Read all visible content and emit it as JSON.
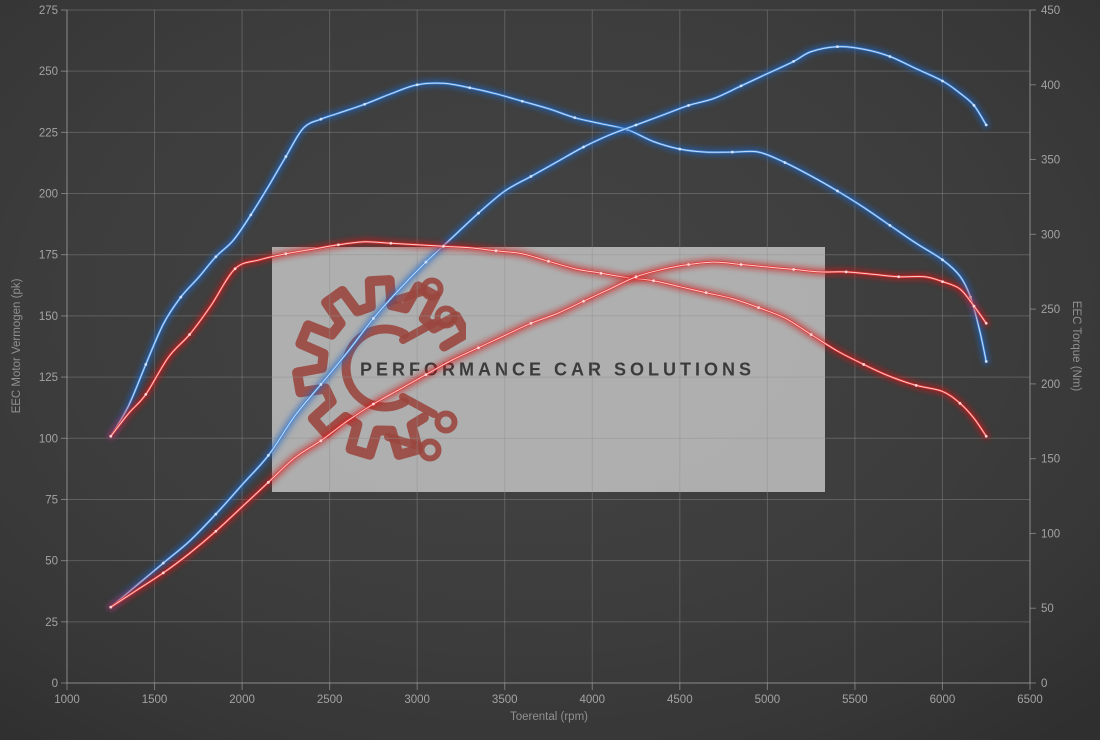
{
  "watermark": {
    "text": "PERFORMANCE CAR SOLUTIONS",
    "logo_icon": "gear-circuit-icon",
    "box_color": "#cbcbcb",
    "text_color": "#3b3b3b",
    "logo_color": "#9a453e"
  },
  "colors": {
    "background": "#3d3d3d",
    "grid": "#8f8f8f",
    "axis_line": "#b0b0b0",
    "tick_label": "#a3a3a3",
    "axis_title": "#919191",
    "blue": "#3f87db",
    "blue_glow": "#1e66c8",
    "blue_core": "#d4e6fb",
    "red": "#e03030",
    "red_glow": "#d01414",
    "red_core": "#ffdcdc"
  },
  "chart_data": {
    "type": "line",
    "x_axis": {
      "label": "Toerental (rpm)",
      "min": 1000,
      "max": 6500,
      "ticks": [
        1000,
        1500,
        2000,
        2500,
        3000,
        3500,
        4000,
        4500,
        5000,
        5500,
        6000,
        6500
      ]
    },
    "y_left": {
      "label": "EEC Motor Vermogen (pk)",
      "min": 0,
      "max": 275,
      "ticks": [
        0,
        25,
        50,
        75,
        100,
        125,
        150,
        175,
        200,
        225,
        250,
        275
      ]
    },
    "y_right": {
      "label": "EEC Torque (Nm)",
      "min": 0,
      "max": 450,
      "ticks": [
        0,
        50,
        100,
        150,
        200,
        250,
        300,
        350,
        400,
        450
      ]
    },
    "grid": "left-axis horizontal every 25, vertical every 500 rpm",
    "legend": "none",
    "series": [
      {
        "id": "torque-blue",
        "axis": "right",
        "unit": "Nm",
        "color": "#3f87db",
        "glow": "#1e66c8",
        "core": "#d4e6fb",
        "points": [
          [
            1250,
            165
          ],
          [
            1350,
            185
          ],
          [
            1450,
            213
          ],
          [
            1550,
            240
          ],
          [
            1650,
            258
          ],
          [
            1750,
            271
          ],
          [
            1850,
            285
          ],
          [
            1950,
            296
          ],
          [
            2050,
            313
          ],
          [
            2150,
            332
          ],
          [
            2250,
            352
          ],
          [
            2350,
            371
          ],
          [
            2450,
            377
          ],
          [
            2550,
            381
          ],
          [
            2700,
            387
          ],
          [
            2850,
            394
          ],
          [
            3000,
            400
          ],
          [
            3150,
            401
          ],
          [
            3300,
            398
          ],
          [
            3450,
            394
          ],
          [
            3600,
            389
          ],
          [
            3750,
            384
          ],
          [
            3900,
            378
          ],
          [
            4050,
            374
          ],
          [
            4200,
            370
          ],
          [
            4350,
            362
          ],
          [
            4500,
            357
          ],
          [
            4650,
            355
          ],
          [
            4800,
            355
          ],
          [
            4950,
            355
          ],
          [
            5100,
            348
          ],
          [
            5250,
            339
          ],
          [
            5400,
            329
          ],
          [
            5550,
            318
          ],
          [
            5700,
            306
          ],
          [
            5850,
            294
          ],
          [
            6000,
            283
          ],
          [
            6100,
            272
          ],
          [
            6160,
            258
          ],
          [
            6210,
            237
          ],
          [
            6250,
            215
          ]
        ]
      },
      {
        "id": "power-blue",
        "axis": "left",
        "unit": "pk",
        "color": "#3f87db",
        "glow": "#1e66c8",
        "core": "#d4e6fb",
        "points": [
          [
            1250,
            31
          ],
          [
            1400,
            40
          ],
          [
            1550,
            49
          ],
          [
            1700,
            58
          ],
          [
            1850,
            69
          ],
          [
            2000,
            81
          ],
          [
            2150,
            93
          ],
          [
            2300,
            109
          ],
          [
            2450,
            122
          ],
          [
            2600,
            135
          ],
          [
            2750,
            149
          ],
          [
            2900,
            161
          ],
          [
            3050,
            172
          ],
          [
            3200,
            182
          ],
          [
            3350,
            192
          ],
          [
            3500,
            201
          ],
          [
            3650,
            207
          ],
          [
            3800,
            213
          ],
          [
            3950,
            219
          ],
          [
            4100,
            224
          ],
          [
            4250,
            228
          ],
          [
            4400,
            232
          ],
          [
            4550,
            236
          ],
          [
            4700,
            239
          ],
          [
            4850,
            244
          ],
          [
            5000,
            249
          ],
          [
            5150,
            254
          ],
          [
            5250,
            258
          ],
          [
            5400,
            260
          ],
          [
            5550,
            259
          ],
          [
            5700,
            256
          ],
          [
            5850,
            251
          ],
          [
            6000,
            246
          ],
          [
            6100,
            241
          ],
          [
            6180,
            236
          ],
          [
            6250,
            228
          ]
        ]
      },
      {
        "id": "torque-red",
        "axis": "right",
        "unit": "Nm",
        "color": "#e03030",
        "glow": "#d01414",
        "core": "#ffdcdc",
        "points": [
          [
            1250,
            165
          ],
          [
            1350,
            180
          ],
          [
            1450,
            193
          ],
          [
            1580,
            218
          ],
          [
            1700,
            233
          ],
          [
            1820,
            252
          ],
          [
            1960,
            277
          ],
          [
            2100,
            283
          ],
          [
            2250,
            287
          ],
          [
            2400,
            290
          ],
          [
            2550,
            293
          ],
          [
            2700,
            295
          ],
          [
            2850,
            294
          ],
          [
            3000,
            293
          ],
          [
            3150,
            292
          ],
          [
            3300,
            291
          ],
          [
            3450,
            289
          ],
          [
            3600,
            287
          ],
          [
            3750,
            282
          ],
          [
            3900,
            277
          ],
          [
            4050,
            274
          ],
          [
            4200,
            271
          ],
          [
            4350,
            269
          ],
          [
            4500,
            265
          ],
          [
            4650,
            261
          ],
          [
            4800,
            257
          ],
          [
            4950,
            251
          ],
          [
            5100,
            244
          ],
          [
            5250,
            233
          ],
          [
            5400,
            222
          ],
          [
            5550,
            213
          ],
          [
            5700,
            205
          ],
          [
            5850,
            199
          ],
          [
            6000,
            195
          ],
          [
            6100,
            187
          ],
          [
            6180,
            177
          ],
          [
            6250,
            165
          ]
        ]
      },
      {
        "id": "power-red",
        "axis": "left",
        "unit": "pk",
        "color": "#e03030",
        "glow": "#d01414",
        "core": "#ffdcdc",
        "points": [
          [
            1250,
            31
          ],
          [
            1400,
            38
          ],
          [
            1550,
            45
          ],
          [
            1700,
            53
          ],
          [
            1850,
            62
          ],
          [
            2000,
            72
          ],
          [
            2150,
            82
          ],
          [
            2300,
            92
          ],
          [
            2450,
            99
          ],
          [
            2600,
            107
          ],
          [
            2750,
            114
          ],
          [
            2900,
            120
          ],
          [
            3050,
            126
          ],
          [
            3200,
            132
          ],
          [
            3350,
            137
          ],
          [
            3500,
            142
          ],
          [
            3650,
            147
          ],
          [
            3800,
            151
          ],
          [
            3950,
            156
          ],
          [
            4100,
            161
          ],
          [
            4250,
            166
          ],
          [
            4400,
            169
          ],
          [
            4550,
            171
          ],
          [
            4700,
            172
          ],
          [
            4850,
            171
          ],
          [
            5000,
            170
          ],
          [
            5150,
            169
          ],
          [
            5300,
            168
          ],
          [
            5450,
            168
          ],
          [
            5600,
            167
          ],
          [
            5750,
            166
          ],
          [
            5900,
            166
          ],
          [
            6000,
            164
          ],
          [
            6100,
            161
          ],
          [
            6180,
            154
          ],
          [
            6250,
            147
          ]
        ]
      }
    ]
  }
}
